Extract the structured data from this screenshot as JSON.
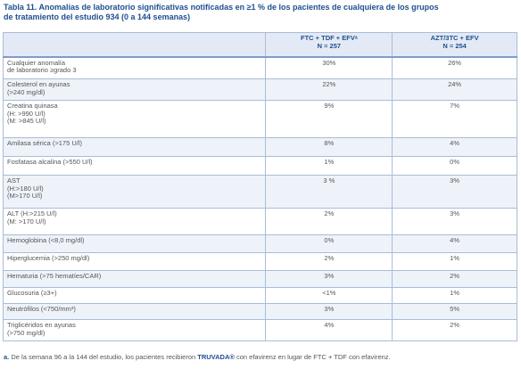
{
  "title": [
    "Tabla 11. Anomalías de laboratorio significativas notificadas en ≥1 % de los pacientes de cualquiera de los grupos",
    "de tratamiento del estudio 934 (0 a 144 semanas)"
  ],
  "table": {
    "header": [
      [
        "FTC + TDF + EFVᵃ",
        "N = 257"
      ],
      [
        "AZT/3TC + EFV",
        "N = 254"
      ]
    ],
    "rows": [
      [
        [
          "Cualquier anomalía",
          "de laboratorio ≥grado 3"
        ],
        "30%",
        "26%"
      ],
      [
        [
          "Colesterol en ayunas",
          "(>240 mg/dl)"
        ],
        "22%",
        "24%"
      ],
      [
        [
          "Creatina quinasa",
          "(H: >990 U/l)",
          "(M: >845 U/l)"
        ],
        "9%",
        "7%"
      ],
      [
        [
          "Amilasa sérica (>175 U/l)"
        ],
        "8%",
        "4%"
      ],
      [
        [
          "Fosfatasa alcalina (>550 U/l)"
        ],
        "1%",
        "0%"
      ],
      [
        [
          "AST",
          "(H:>180 U/l)",
          "(M>170 U/l)"
        ],
        "3 %",
        "3%"
      ],
      [
        [
          "ALT (H:>215 U/l)",
          "(M: >170 U/l)"
        ],
        "2%",
        "3%"
      ],
      [
        [
          "Hemoglobina (<8,0 mg/dl)"
        ],
        "0%",
        "4%"
      ],
      [
        [
          "Hiperglucemia (>250 mg/dl)"
        ],
        "2%",
        "1%"
      ],
      [
        [
          "Hematuria (>75 hematíes/CAR)"
        ],
        "3%",
        "2%"
      ],
      [
        [
          "Glucosuria (≥3+)"
        ],
        "<1%",
        "1%"
      ],
      [
        [
          "Neutrófilos (<750/mm³)"
        ],
        "3%",
        "5%"
      ],
      [
        [
          "Triglicéridos en ayunas",
          "(>750 mg/dl)"
        ],
        "4%",
        "2%"
      ]
    ]
  },
  "footnote": {
    "mark": "a.",
    "text1": "De la semana 96 a la 144 del estudio, los pacientes recibieron",
    "brand": "TRUVADA®",
    "text2": "con efavirenz en lugar de FTC + TDF con efavirenz."
  }
}
